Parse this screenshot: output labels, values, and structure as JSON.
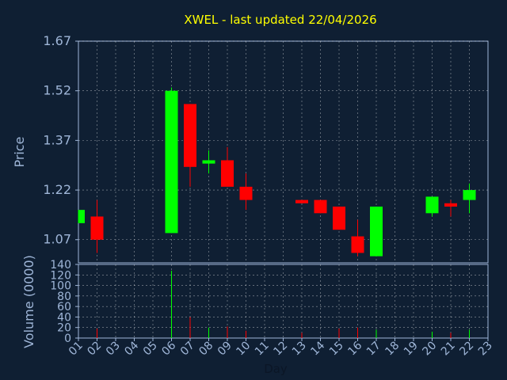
{
  "chart_data": {
    "type": "candlestick",
    "title": "XWEL - last updated 22/04/2026",
    "xlabel": "Day",
    "price_ylabel": "Price",
    "volume_ylabel": "Volume (0000)",
    "colors": {
      "background": "#0f1f33",
      "up": "#00ff00",
      "down": "#ff0000",
      "axis": "#9fb6d8",
      "title": "#ffff00",
      "grid": "#ffffff"
    },
    "x_ticks": [
      "01",
      "02",
      "03",
      "04",
      "05",
      "06",
      "07",
      "08",
      "09",
      "10",
      "11",
      "12",
      "13",
      "14",
      "15",
      "16",
      "17",
      "18",
      "19",
      "20",
      "21",
      "22",
      "23"
    ],
    "price_ylim": [
      1.0,
      1.67
    ],
    "price_ticks": [
      "1.07",
      "1.22",
      "1.37",
      "1.52",
      "1.67"
    ],
    "volume_ylim": [
      0,
      140
    ],
    "volume_ticks": [
      "0",
      "20",
      "40",
      "60",
      "80",
      "100",
      "120",
      "140"
    ],
    "candles": [
      {
        "day": 1,
        "open": 1.12,
        "close": 1.16,
        "high": 1.16,
        "low": 1.12
      },
      {
        "day": 2,
        "open": 1.14,
        "close": 1.07,
        "high": 1.19,
        "low": 1.03
      },
      {
        "day": 6,
        "open": 1.09,
        "close": 1.52,
        "high": 1.53,
        "low": 1.09
      },
      {
        "day": 7,
        "open": 1.48,
        "close": 1.29,
        "high": 1.48,
        "low": 1.23
      },
      {
        "day": 8,
        "open": 1.3,
        "close": 1.31,
        "high": 1.34,
        "low": 1.27
      },
      {
        "day": 9,
        "open": 1.31,
        "close": 1.23,
        "high": 1.35,
        "low": 1.23
      },
      {
        "day": 10,
        "open": 1.23,
        "close": 1.19,
        "high": 1.27,
        "low": 1.16
      },
      {
        "day": 13,
        "open": 1.19,
        "close": 1.18,
        "high": 1.19,
        "low": 1.18
      },
      {
        "day": 14,
        "open": 1.19,
        "close": 1.15,
        "high": 1.19,
        "low": 1.15
      },
      {
        "day": 15,
        "open": 1.17,
        "close": 1.1,
        "high": 1.17,
        "low": 1.1
      },
      {
        "day": 16,
        "open": 1.08,
        "close": 1.03,
        "high": 1.13,
        "low": 1.02
      },
      {
        "day": 17,
        "open": 1.02,
        "close": 1.17,
        "high": 1.17,
        "low": 1.02
      },
      {
        "day": 20,
        "open": 1.15,
        "close": 1.2,
        "high": 1.2,
        "low": 1.14
      },
      {
        "day": 21,
        "open": 1.18,
        "close": 1.17,
        "high": 1.19,
        "low": 1.14
      },
      {
        "day": 22,
        "open": 1.19,
        "close": 1.22,
        "high": 1.24,
        "low": 1.15
      }
    ],
    "volume": [
      {
        "day": 2,
        "value": 18,
        "direction": "down"
      },
      {
        "day": 6,
        "value": 128,
        "direction": "up"
      },
      {
        "day": 7,
        "value": 40,
        "direction": "down"
      },
      {
        "day": 8,
        "value": 20,
        "direction": "up"
      },
      {
        "day": 9,
        "value": 22,
        "direction": "down"
      },
      {
        "day": 10,
        "value": 14,
        "direction": "down"
      },
      {
        "day": 13,
        "value": 10,
        "direction": "down"
      },
      {
        "day": 15,
        "value": 18,
        "direction": "down"
      },
      {
        "day": 16,
        "value": 20,
        "direction": "down"
      },
      {
        "day": 17,
        "value": 16,
        "direction": "up"
      },
      {
        "day": 20,
        "value": 12,
        "direction": "up"
      },
      {
        "day": 21,
        "value": 10,
        "direction": "down"
      },
      {
        "day": 22,
        "value": 16,
        "direction": "up"
      }
    ]
  }
}
